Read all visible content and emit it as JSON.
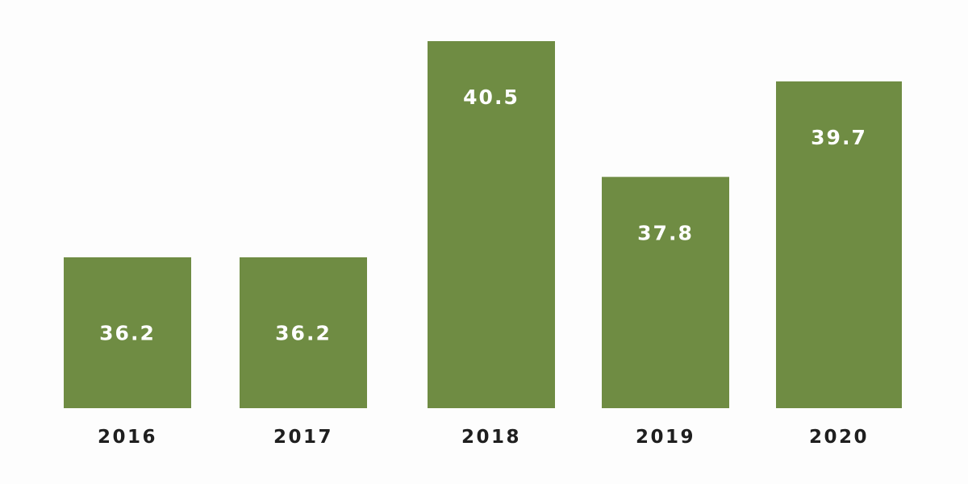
{
  "chart_data": {
    "type": "bar",
    "categories": [
      "2016",
      "2017",
      "2018",
      "2019",
      "2020"
    ],
    "values": [
      36.2,
      36.2,
      40.5,
      37.8,
      39.7
    ],
    "value_labels": [
      "36.2",
      "36.2",
      "40.5",
      "37.8",
      "39.7"
    ],
    "title": "",
    "xlabel": "",
    "ylabel": "",
    "ylim": [
      33.2,
      40.5
    ],
    "grid": false,
    "legend": "none",
    "colors": {
      "bar": "#6f8c43",
      "bar_label": "#ffffff",
      "tick_label": "#1f1f1f",
      "background": "#fdfdfd"
    }
  }
}
